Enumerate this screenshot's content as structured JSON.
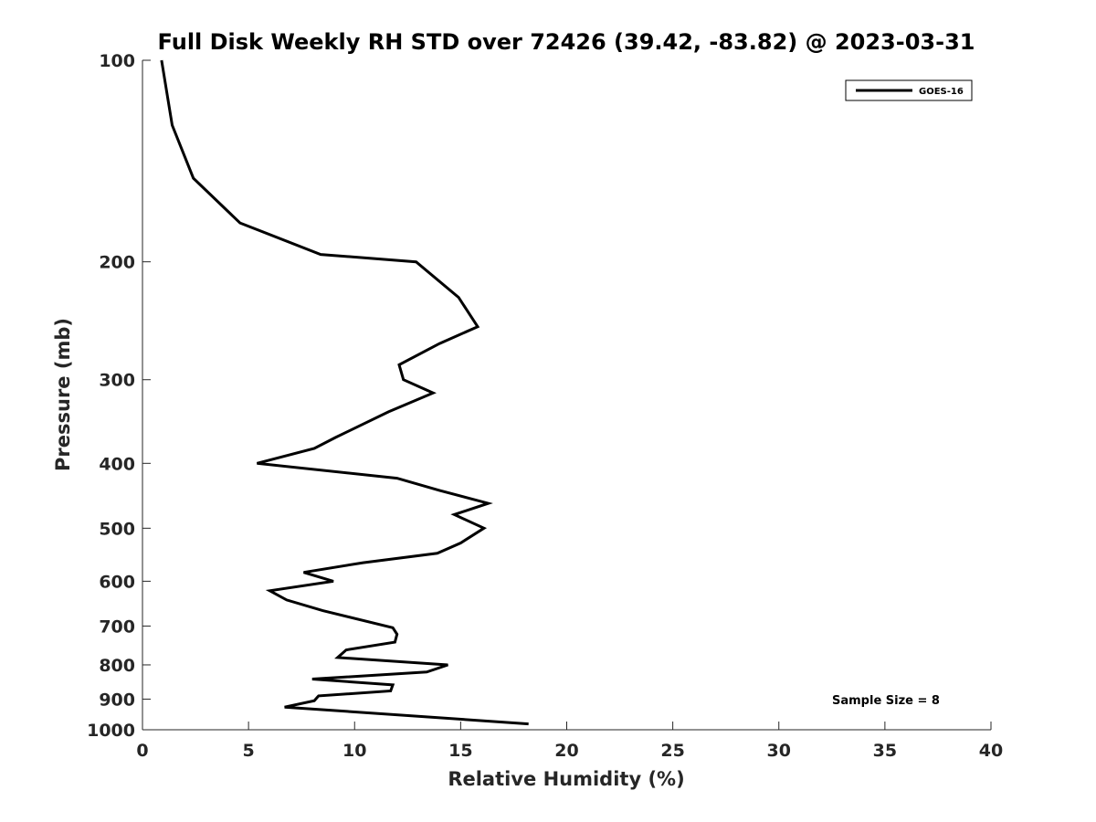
{
  "chart_data": {
    "type": "line",
    "title": "Full Disk Weekly RH STD over 72426 (39.42, -83.82) @ 2023-03-31",
    "xlabel": "Relative Humidity (%)",
    "ylabel": "Pressure (mb)",
    "xlim": [
      0,
      40
    ],
    "ylim": [
      100,
      1000
    ],
    "y_scale": "log",
    "y_reversed": true,
    "x_ticks": [
      0,
      5,
      10,
      15,
      20,
      25,
      30,
      35,
      40
    ],
    "y_ticks": [
      100,
      200,
      300,
      400,
      500,
      600,
      700,
      800,
      900,
      1000
    ],
    "grid": false,
    "legend_position": "top-right",
    "annotation": "Sample Size = 8",
    "series": [
      {
        "name": "GOES-16",
        "color": "#000000",
        "points": [
          [
            0.9,
            100
          ],
          [
            1.4,
            125
          ],
          [
            2.4,
            150
          ],
          [
            4.6,
            175
          ],
          [
            8.4,
            195
          ],
          [
            12.9,
            200
          ],
          [
            14.9,
            226
          ],
          [
            15.8,
            250
          ],
          [
            14.0,
            265
          ],
          [
            12.1,
            285
          ],
          [
            12.3,
            300
          ],
          [
            13.7,
            314
          ],
          [
            11.6,
            335
          ],
          [
            9.1,
            366
          ],
          [
            8.1,
            380
          ],
          [
            5.4,
            400
          ],
          [
            12.0,
            421
          ],
          [
            14.0,
            439
          ],
          [
            16.3,
            459
          ],
          [
            14.7,
            477
          ],
          [
            16.1,
            500
          ],
          [
            15.0,
            526
          ],
          [
            13.9,
            545
          ],
          [
            10.4,
            563
          ],
          [
            7.6,
            582
          ],
          [
            9.0,
            600
          ],
          [
            6.0,
            620
          ],
          [
            6.8,
            640
          ],
          [
            8.5,
            664
          ],
          [
            11.8,
            704
          ],
          [
            12.0,
            720
          ],
          [
            11.9,
            740
          ],
          [
            9.6,
            760
          ],
          [
            9.2,
            780
          ],
          [
            14.4,
            800
          ],
          [
            13.4,
            820
          ],
          [
            8.0,
            840
          ],
          [
            11.8,
            857
          ],
          [
            11.7,
            875
          ],
          [
            8.3,
            890
          ],
          [
            8.1,
            905
          ],
          [
            6.7,
            925
          ],
          [
            18.2,
            980
          ]
        ]
      }
    ]
  }
}
